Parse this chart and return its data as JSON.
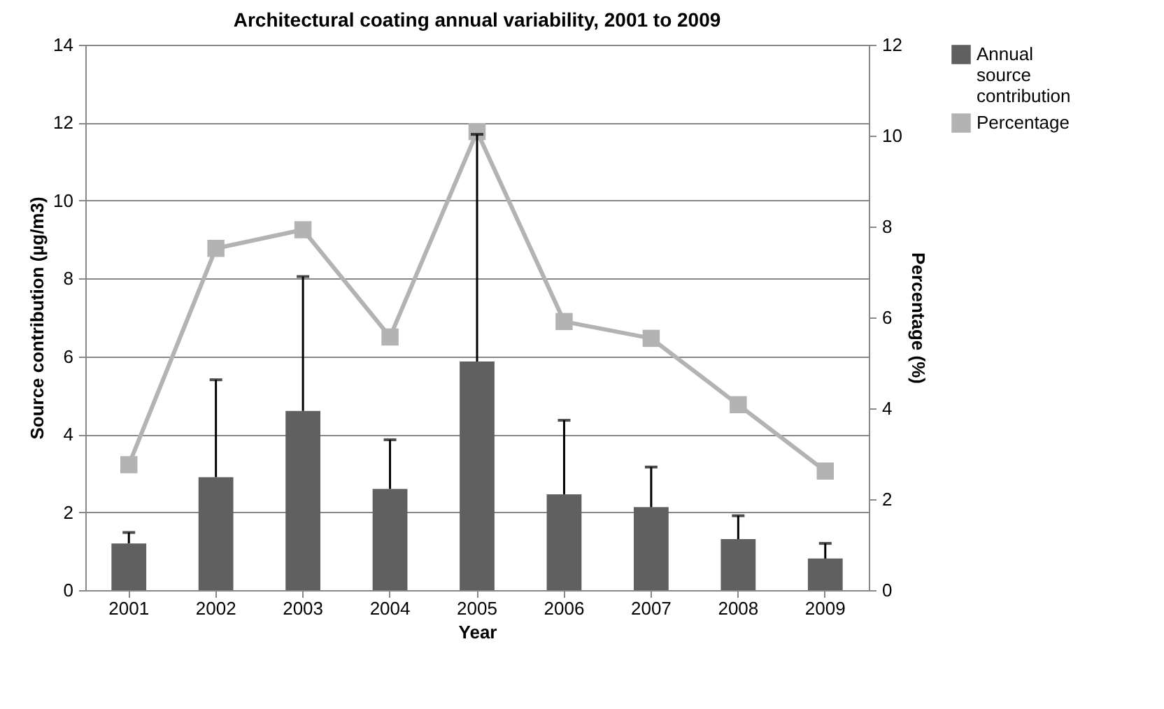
{
  "chart_data": {
    "type": "bar",
    "title": "Architectural coating annual variability, 2001 to 2009",
    "xlabel": "Year",
    "ylabel": "Source contribution (µg/m3)",
    "y2label": "Percentage (%)",
    "categories": [
      "2001",
      "2002",
      "2003",
      "2004",
      "2005",
      "2006",
      "2007",
      "2008",
      "2009"
    ],
    "series": [
      {
        "name": "Annual source contribution",
        "color": "#606060",
        "values": [
          1.2,
          2.9,
          4.6,
          2.6,
          5.87,
          2.46,
          2.13,
          1.31,
          0.81
        ],
        "errors": [
          [
            1.2,
            1.48
          ],
          [
            2.9,
            5.4
          ],
          [
            4.6,
            8.05
          ],
          [
            2.6,
            3.86
          ],
          [
            5.87,
            11.7
          ],
          [
            2.46,
            4.36
          ],
          [
            2.13,
            3.16
          ],
          [
            1.31,
            1.91
          ],
          [
            0.81,
            1.2
          ]
        ]
      },
      {
        "name": "Percentage",
        "type": "line",
        "axis": "y2",
        "color": "#b3b3b3",
        "marker": "square",
        "values": [
          2.76,
          7.52,
          7.93,
          5.57,
          10.09,
          5.91,
          5.54,
          4.08,
          2.62
        ]
      }
    ],
    "ylim": [
      0,
      14
    ],
    "yticks": [
      0,
      2,
      4,
      6,
      8,
      10,
      12,
      14
    ],
    "y2lim": [
      0,
      12
    ],
    "y2ticks": [
      0,
      2,
      4,
      6,
      8,
      10,
      12
    ],
    "grid": "y",
    "legend": "right"
  }
}
